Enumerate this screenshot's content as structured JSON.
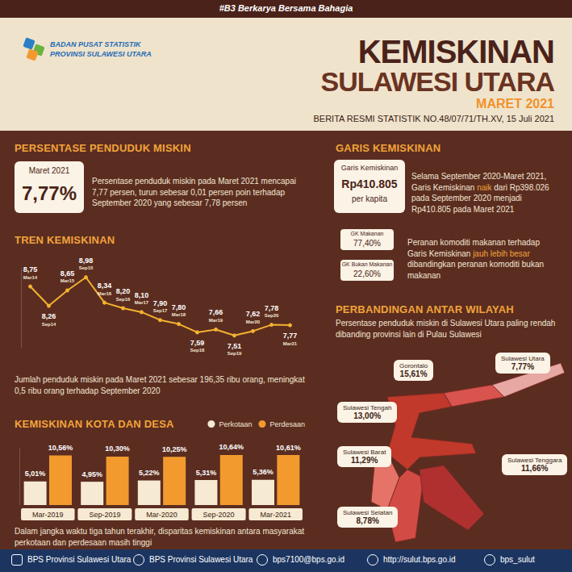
{
  "header": {
    "tagline": "#B3 Berkarya Bersama Bahagia",
    "org_name": "BADAN PUSAT STATISTIK",
    "org_region": "PROVINSI SULAWESI UTARA",
    "title_line1": "KEMISKINAN",
    "title_line2": "SULAWESI UTARA",
    "period": "MARET 2021",
    "release": "BERITA RESMI STATISTIK NO.48/07/71/TH.XV, 15 Juli 2021"
  },
  "poverty_rate": {
    "heading": "PERSENTASE PENDUDUK MISKIN",
    "box_label": "Maret 2021",
    "box_value": "7,77%",
    "text": "Persentase penduduk miskin pada Maret 2021 mencapai 7,77 persen, turun sebesar 0,01 persen poin terhadap September 2020 yang sebesar 7,78 persen"
  },
  "poverty_line": {
    "heading": "GARIS KEMISKINAN",
    "box_label": "Garis Kemiskinan",
    "box_value": "Rp410.805",
    "box_unit": "per kapita",
    "text": {
      "before": "Selama September 2020-Maret 2021, Garis Kemiskinan ",
      "highlight": "naik",
      "after": " dari Rp398.026 pada September 2020 menjadi Rp410.805 pada Maret 2021"
    },
    "shares": [
      {
        "label": "GK Makanan",
        "value": "77,40%"
      },
      {
        "label": "GK Bukan Makanan",
        "value": "22,60%"
      }
    ],
    "share_text": {
      "before": "Peranan komoditi makanan terhadap Garis Kemiskinan ",
      "highlight": "jauh lebih besar",
      "after": " dibandingkan peranan komoditi bukan makanan"
    }
  },
  "chart_data": [
    {
      "type": "line",
      "title": "TREN KEMISKINAN",
      "annotation": "Jumlah penduduk miskin pada Maret 2021 sebesar  196,35 ribu orang, meningkat 0,5 ribu orang terhadap September 2020",
      "categories": [
        "Mar14",
        "Sep14",
        "Mar15",
        "Sep15",
        "Mar16",
        "Sep16",
        "Mar17",
        "Sep17",
        "Mar18",
        "Sep18",
        "Mar19",
        "Sep19",
        "Mar20",
        "Sep20",
        "Mar21"
      ],
      "values": [
        8.75,
        8.26,
        8.65,
        8.98,
        8.34,
        8.2,
        8.1,
        7.9,
        7.8,
        7.59,
        7.66,
        7.51,
        7.62,
        7.78,
        7.77
      ],
      "value_labels": [
        "8,75",
        "8,26",
        "8,65",
        "8,98",
        "8,34",
        "8,20",
        "8,10",
        "7,90",
        "7,80",
        "7,59",
        "7,66",
        "7,51",
        "7,62",
        "7,78",
        "7,77"
      ],
      "color": "#f2b230",
      "marker": "circle",
      "ylim": [
        7.2,
        9.2
      ],
      "tick_labels": false,
      "grid": false,
      "data_labels": true
    },
    {
      "type": "bar",
      "title": "KEMISKINAN KOTA DAN DESA",
      "annotation": "Dalam jangka waktu tiga tahun terakhir, disparitas kemiskinan antara masyarakat perkotaan dan perdesaan masih tinggi",
      "categories": [
        "Mar-2019",
        "Sep-2019",
        "Mar-2020",
        "Sep-2020",
        "Mar-2021"
      ],
      "series": [
        {
          "name": "Perkotaan",
          "color": "#f6ead2",
          "values": [
            5.01,
            4.95,
            5.22,
            5.31,
            5.36
          ],
          "value_labels": [
            "5,01%",
            "4,95%",
            "5,22%",
            "5,31%",
            "5,36%"
          ]
        },
        {
          "name": "Perdesaan",
          "color": "#f29a2e",
          "values": [
            10.56,
            10.3,
            10.25,
            10.64,
            10.61
          ],
          "value_labels": [
            "10,56%",
            "10,30%",
            "10,25%",
            "10,64%",
            "10,61%"
          ]
        }
      ],
      "ylim": [
        0,
        12
      ],
      "legend": "top-right",
      "tick_labels": "x",
      "grid": false,
      "data_labels": true
    }
  ],
  "regions": {
    "heading": "PERBANDINGAN ANTAR WILAYAH",
    "text": "Persentase penduduk miskin di Sulawesi Utara paling rendah dibanding provinsi lain di Pulau Sulawesi",
    "items": [
      {
        "name": "Gorontalo",
        "value": "15,61%"
      },
      {
        "name": "Sulawesi Utara",
        "value": "7,77%"
      },
      {
        "name": "Sulawesi Tengah",
        "value": "13,00%"
      },
      {
        "name": "Sulawesi Barat",
        "value": "11,29%"
      },
      {
        "name": "Sulawesi Tenggara",
        "value": "11,66%"
      },
      {
        "name": "Sulawesi Selatan",
        "value": "8,78%"
      }
    ]
  },
  "footer": [
    "BPS Provinsi Sulawesi Utara",
    "BPS Provinsi Sulawesi Utara",
    "bps7100@bps.go.id",
    "http://sulut.bps.go.id",
    "bps_sulut"
  ]
}
